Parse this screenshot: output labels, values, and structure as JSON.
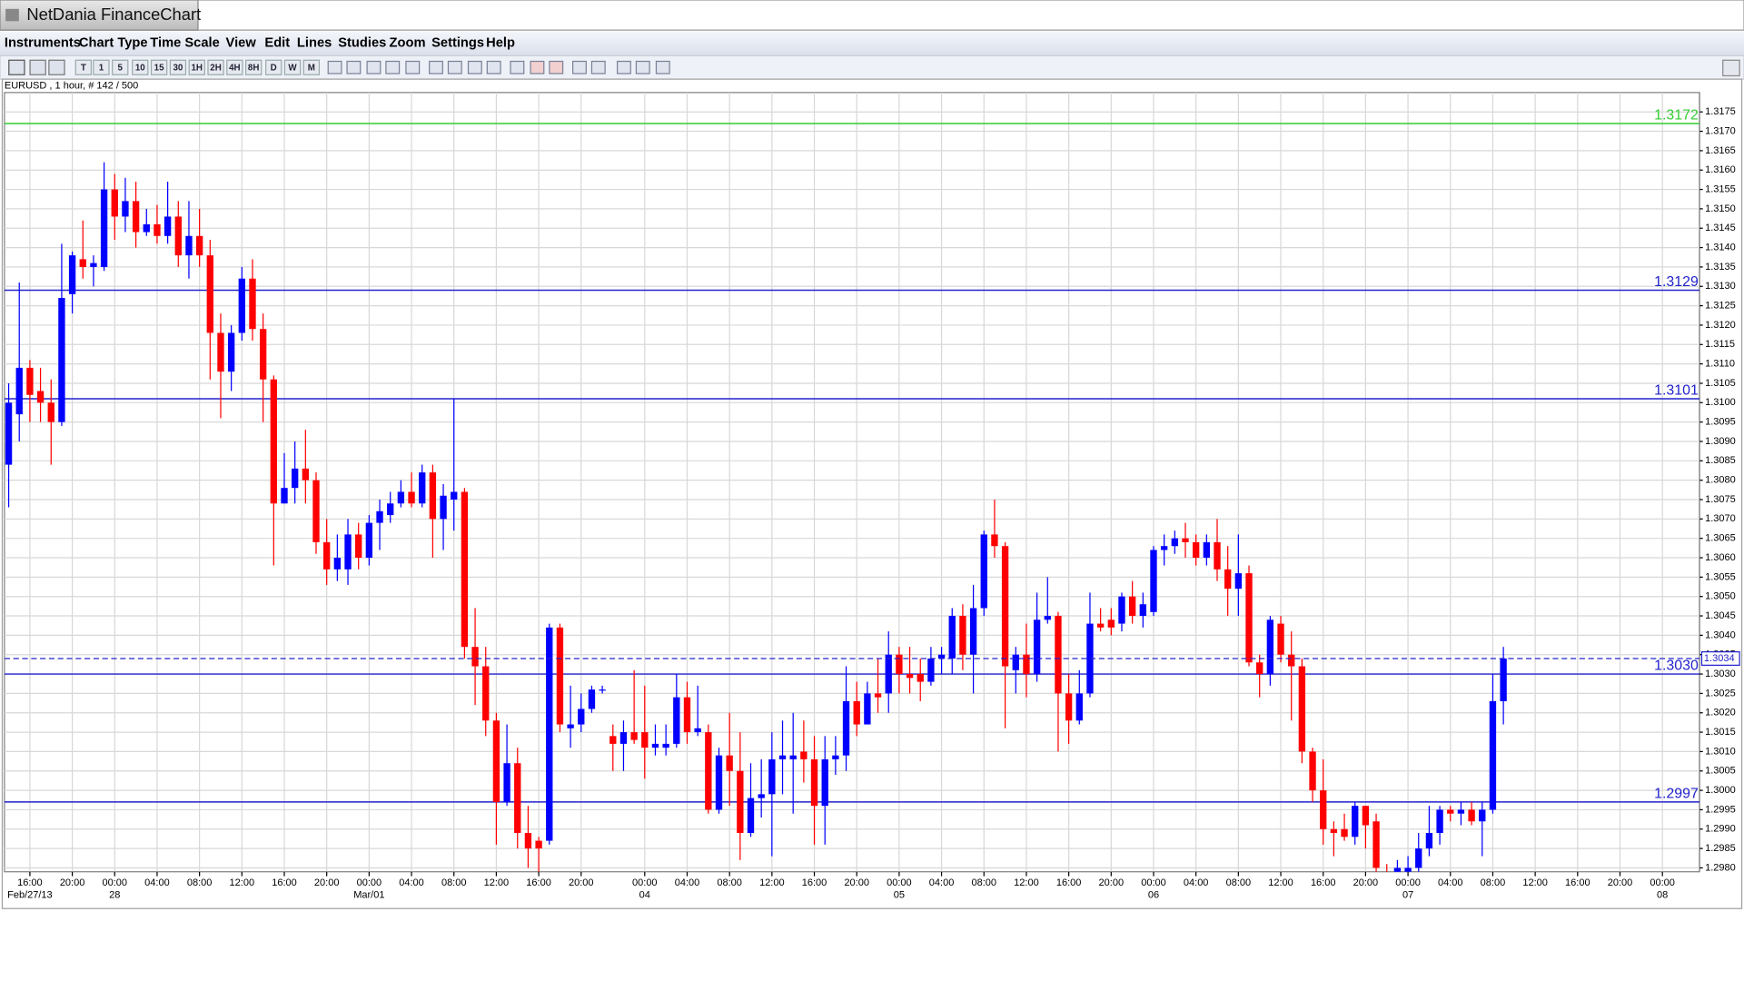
{
  "ui": {
    "window_title": "NetDania FinanceChart",
    "menu": [
      "Instruments",
      "Chart Type",
      "Time Scale",
      "View",
      "Edit",
      "Lines",
      "Studies",
      "Zoom",
      "Settings",
      "Help"
    ],
    "toolbar": [
      "T",
      "1",
      "5",
      "10",
      "15",
      "30",
      "1H",
      "2H",
      "4H",
      "8H",
      "D",
      "W",
      "M"
    ],
    "info": "EURUSD , 1 hour, # 142 / 500"
  },
  "chart_data": {
    "type": "candlestick",
    "up_color": "#0000ff",
    "down_color": "#ff0000",
    "grid": true,
    "open": [
      1.3084,
      1.3097,
      1.3109,
      1.3103,
      1.31,
      1.3095,
      1.3128,
      1.3137,
      1.3135,
      1.3135,
      1.3155,
      1.3148,
      1.3152,
      1.3144,
      1.3146,
      1.3143,
      1.3148,
      1.3138,
      1.3143,
      1.3138,
      1.3118,
      1.3108,
      1.3118,
      1.3132,
      1.3119,
      1.3106,
      1.3074,
      1.3078,
      1.3083,
      1.308,
      1.3064,
      1.3057,
      1.3057,
      1.3066,
      1.306,
      1.3069,
      1.3071,
      1.3074,
      1.3077,
      1.3074,
      1.3082,
      1.307,
      1.3075,
      1.3077,
      1.3037,
      1.3032,
      1.3018,
      1.2997,
      1.3007,
      1.2989,
      1.2987,
      1.2987,
      1.3042,
      1.3016,
      1.3017,
      1.3021,
      1.3026,
      1.3014,
      1.3012,
      1.3015,
      1.3015,
      1.3011,
      1.3011,
      1.3012,
      1.3024,
      1.3015,
      1.3015,
      1.2995,
      1.3009,
      1.3005,
      1.2989,
      1.2998,
      1.2999,
      1.3008,
      1.3008,
      1.301,
      1.3008,
      1.2996,
      1.3008,
      1.3009,
      1.3023,
      1.3017,
      1.3025,
      1.3025,
      1.3035,
      1.303,
      1.303,
      1.3028,
      1.3034,
      1.3034,
      1.3045,
      1.3035,
      1.3047,
      1.3066,
      1.3063,
      1.3031,
      1.3035,
      1.303,
      1.3044,
      1.3045,
      1.3025,
      1.3018,
      1.3025,
      1.3043,
      1.3044,
      1.3043,
      1.305,
      1.3045,
      1.3046,
      1.3062,
      1.3063,
      1.3065,
      1.3064,
      1.306,
      1.3064,
      1.3057,
      1.3052,
      1.3056,
      1.3033,
      1.303,
      1.3043,
      1.3035,
      1.3032,
      1.301,
      1.3,
      1.299,
      1.299,
      1.2988,
      1.2996,
      1.2992,
      1.2979,
      1.2977,
      1.2978,
      1.298,
      1.2985,
      1.2989,
      1.2995,
      1.2994,
      1.2995,
      1.2992,
      1.2995,
      1.3023
    ],
    "high": [
      1.3105,
      1.3131,
      1.3111,
      1.3109,
      1.3106,
      1.3141,
      1.3139,
      1.3147,
      1.3138,
      1.3162,
      1.3159,
      1.3158,
      1.3157,
      1.315,
      1.3151,
      1.3157,
      1.3152,
      1.3152,
      1.315,
      1.3142,
      1.3123,
      1.312,
      1.3135,
      1.3137,
      1.3123,
      1.3107,
      1.3087,
      1.309,
      1.3093,
      1.3082,
      1.307,
      1.3066,
      1.307,
      1.3069,
      1.3071,
      1.3075,
      1.3077,
      1.308,
      1.3082,
      1.3084,
      1.3084,
      1.3079,
      1.3101,
      1.3078,
      1.3047,
      1.3037,
      1.302,
      1.3017,
      1.3011,
      1.2996,
      1.2988,
      1.3043,
      1.3043,
      1.3027,
      1.3025,
      1.3027,
      1.3027,
      1.3017,
      1.3018,
      1.3031,
      1.3027,
      1.3017,
      1.3017,
      1.303,
      1.3028,
      1.3027,
      1.3017,
      1.3011,
      1.302,
      1.3015,
      1.3007,
      1.3008,
      1.3015,
      1.3018,
      1.302,
      1.3018,
      1.3014,
      1.3014,
      1.3014,
      1.3032,
      1.3028,
      1.3028,
      1.3034,
      1.3041,
      1.3037,
      1.3037,
      1.3034,
      1.3037,
      1.3037,
      1.3047,
      1.3048,
      1.3053,
      1.3067,
      1.3075,
      1.3064,
      1.3037,
      1.3043,
      1.3051,
      1.3055,
      1.3046,
      1.303,
      1.3031,
      1.3051,
      1.3047,
      1.3047,
      1.3051,
      1.3054,
      1.3051,
      1.3063,
      1.3066,
      1.3067,
      1.3069,
      1.3066,
      1.3066,
      1.307,
      1.3063,
      1.3066,
      1.3058,
      1.3035,
      1.3045,
      1.3045,
      1.3041,
      1.3034,
      1.3011,
      1.3008,
      1.2992,
      1.2994,
      1.2997,
      1.2996,
      1.2994,
      1.2981,
      1.2982,
      1.2983,
      1.2989,
      1.2996,
      1.2996,
      1.2996,
      1.2997,
      1.2997,
      1.2997,
      1.303,
      1.3037
    ],
    "low": [
      1.3073,
      1.309,
      1.3095,
      1.3095,
      1.3084,
      1.3094,
      1.3123,
      1.3132,
      1.313,
      1.3134,
      1.3142,
      1.3144,
      1.314,
      1.3143,
      1.3141,
      1.3141,
      1.3135,
      1.3132,
      1.3135,
      1.3106,
      1.3096,
      1.3103,
      1.3116,
      1.3116,
      1.3095,
      1.3058,
      1.3074,
      1.3074,
      1.3074,
      1.3061,
      1.3053,
      1.3054,
      1.3053,
      1.3057,
      1.3058,
      1.3062,
      1.3069,
      1.3073,
      1.3073,
      1.3073,
      1.306,
      1.3062,
      1.3067,
      1.3034,
      1.3022,
      1.3014,
      1.2986,
      1.2996,
      1.2985,
      1.298,
      1.2979,
      1.2986,
      1.3015,
      1.3011,
      1.3015,
      1.302,
      1.3025,
      1.3005,
      1.3005,
      1.3012,
      1.3003,
      1.3009,
      1.3009,
      1.3011,
      1.3012,
      1.3014,
      1.2994,
      1.2994,
      1.2996,
      1.2982,
      1.2988,
      1.2993,
      1.2983,
      1.2999,
      1.2994,
      1.3002,
      1.2986,
      1.2986,
      1.3004,
      1.3005,
      1.3014,
      1.3017,
      1.302,
      1.302,
      1.3025,
      1.3025,
      1.3023,
      1.3027,
      1.303,
      1.303,
      1.3031,
      1.3025,
      1.3045,
      1.306,
      1.3016,
      1.3025,
      1.3024,
      1.3028,
      1.3043,
      1.301,
      1.3012,
      1.3017,
      1.3024,
      1.3041,
      1.304,
      1.3041,
      1.3043,
      1.3042,
      1.3045,
      1.3058,
      1.3061,
      1.306,
      1.3058,
      1.3058,
      1.3054,
      1.3045,
      1.3045,
      1.3032,
      1.3024,
      1.3027,
      1.3033,
      1.3018,
      1.3007,
      1.2997,
      1.2986,
      1.2983,
      1.2987,
      1.2986,
      1.2985,
      1.2978,
      1.2973,
      1.2975,
      1.2976,
      1.2979,
      1.2983,
      1.2986,
      1.2992,
      1.2991,
      1.2991,
      1.2983,
      1.2994,
      1.3017
    ],
    "close": [
      1.31,
      1.3109,
      1.3102,
      1.31,
      1.3095,
      1.3127,
      1.3138,
      1.3135,
      1.3136,
      1.3155,
      1.3148,
      1.3152,
      1.3144,
      1.3146,
      1.3143,
      1.3148,
      1.3138,
      1.3143,
      1.3138,
      1.3118,
      1.3108,
      1.3118,
      1.3132,
      1.3119,
      1.3106,
      1.3074,
      1.3078,
      1.3083,
      1.308,
      1.3064,
      1.3057,
      1.306,
      1.3066,
      1.306,
      1.3069,
      1.3072,
      1.3074,
      1.3077,
      1.3074,
      1.3082,
      1.307,
      1.3076,
      1.3077,
      1.3037,
      1.3032,
      1.3018,
      1.2997,
      1.3007,
      1.2989,
      1.2985,
      1.2985,
      1.3042,
      1.3017,
      1.3017,
      1.3021,
      1.3026,
      1.3026,
      1.3012,
      1.3015,
      1.3013,
      1.3011,
      1.3012,
      1.3012,
      1.3024,
      1.3015,
      1.3016,
      1.2995,
      1.3009,
      1.3005,
      1.2989,
      1.2998,
      1.2999,
      1.3008,
      1.3009,
      1.3009,
      1.3008,
      1.2996,
      1.3008,
      1.3009,
      1.3023,
      1.3017,
      1.3025,
      1.3024,
      1.3035,
      1.303,
      1.3029,
      1.3028,
      1.3034,
      1.3035,
      1.3045,
      1.3035,
      1.3047,
      1.3066,
      1.3063,
      1.3032,
      1.3035,
      1.303,
      1.3044,
      1.3045,
      1.3025,
      1.3018,
      1.3025,
      1.3043,
      1.3042,
      1.3042,
      1.305,
      1.3045,
      1.3048,
      1.3062,
      1.3063,
      1.3065,
      1.3064,
      1.306,
      1.3064,
      1.3057,
      1.3052,
      1.3056,
      1.3033,
      1.303,
      1.3044,
      1.3035,
      1.3032,
      1.301,
      1.3,
      1.299,
      1.2989,
      1.2988,
      1.2996,
      1.2991,
      1.298,
      1.2975,
      1.298,
      1.298,
      1.2985,
      1.2989,
      1.2995,
      1.2994,
      1.2995,
      1.2992,
      1.2995,
      1.3023,
      1.3034
    ],
    "xlim": [
      -0.4,
      159.5
    ],
    "xticks": [
      {
        "value": 2,
        "label": "16:00"
      },
      {
        "value": 6,
        "label": "20:00"
      },
      {
        "value": 10,
        "label": "00:00"
      },
      {
        "value": 14,
        "label": "04:00"
      },
      {
        "value": 18,
        "label": "08:00"
      },
      {
        "value": 22,
        "label": "12:00"
      },
      {
        "value": 26,
        "label": "16:00"
      },
      {
        "value": 30,
        "label": "20:00"
      },
      {
        "value": 34,
        "label": "00:00"
      },
      {
        "value": 38,
        "label": "04:00"
      },
      {
        "value": 42,
        "label": "08:00"
      },
      {
        "value": 46,
        "label": "12:00"
      },
      {
        "value": 50,
        "label": "16:00"
      },
      {
        "value": 54,
        "label": "20:00"
      },
      {
        "value": 60,
        "label": "00:00"
      },
      {
        "value": 64,
        "label": "04:00"
      },
      {
        "value": 68,
        "label": "08:00"
      },
      {
        "value": 72,
        "label": "12:00"
      },
      {
        "value": 76,
        "label": "16:00"
      },
      {
        "value": 80,
        "label": "20:00"
      },
      {
        "value": 84,
        "label": "00:00"
      },
      {
        "value": 88,
        "label": "04:00"
      },
      {
        "value": 92,
        "label": "08:00"
      },
      {
        "value": 96,
        "label": "12:00"
      },
      {
        "value": 100,
        "label": "16:00"
      },
      {
        "value": 104,
        "label": "20:00"
      },
      {
        "value": 108,
        "label": "00:00"
      },
      {
        "value": 112,
        "label": "04:00"
      },
      {
        "value": 116,
        "label": "08:00"
      },
      {
        "value": 120,
        "label": "12:00"
      },
      {
        "value": 124,
        "label": "16:00"
      },
      {
        "value": 128,
        "label": "20:00"
      },
      {
        "value": 132,
        "label": "00:00"
      },
      {
        "value": 136,
        "label": "04:00"
      },
      {
        "value": 140,
        "label": "08:00"
      },
      {
        "value": 144,
        "label": "12:00"
      },
      {
        "value": 148,
        "label": "16:00"
      },
      {
        "value": 152,
        "label": "20:00"
      },
      {
        "value": 156,
        "label": "00:00"
      }
    ],
    "date_ticks": [
      {
        "value": 2,
        "label": "Feb/27/13"
      },
      {
        "value": 10,
        "label": "28"
      },
      {
        "value": 34,
        "label": "Mar/01"
      },
      {
        "value": 60,
        "label": "04"
      },
      {
        "value": 84,
        "label": "05"
      },
      {
        "value": 108,
        "label": "06"
      },
      {
        "value": 132,
        "label": "07"
      },
      {
        "value": 156,
        "label": "08"
      }
    ],
    "ylim": [
      1.2979,
      1.318
    ],
    "yticks": [
      {
        "value": 1.298,
        "label": "1.2980"
      },
      1.2985,
      {
        "value": 1.299,
        "label": "1.2990"
      },
      1.2995,
      {
        "value": 1.3,
        "label": "1.3000"
      },
      1.3005,
      {
        "value": 1.301,
        "label": "1.3010"
      },
      1.3015,
      {
        "value": 1.302,
        "label": "1.3020"
      },
      1.3025,
      {
        "value": 1.303,
        "label": "1.3030"
      },
      1.3035,
      {
        "value": 1.304,
        "label": "1.3040"
      },
      1.3045,
      {
        "value": 1.305,
        "label": "1.3050"
      },
      1.3055,
      {
        "value": 1.306,
        "label": "1.3060"
      },
      1.3065,
      {
        "value": 1.307,
        "label": "1.3070"
      },
      1.3075,
      {
        "value": 1.308,
        "label": "1.3080"
      },
      1.3085,
      {
        "value": 1.309,
        "label": "1.3090"
      },
      1.3095,
      {
        "value": 1.31,
        "label": "1.3100"
      },
      1.3105,
      {
        "value": 1.311,
        "label": "1.3110"
      },
      1.3115,
      {
        "value": 1.312,
        "label": "1.3120"
      },
      1.3125,
      {
        "value": 1.313,
        "label": "1.3130"
      },
      1.3135,
      {
        "value": 1.314,
        "label": "1.3140"
      },
      1.3145,
      {
        "value": 1.315,
        "label": "1.3150"
      },
      1.3155,
      {
        "value": 1.316,
        "label": "1.3160"
      },
      1.3165,
      {
        "value": 1.317,
        "label": "1.3170"
      },
      1.3175
    ],
    "lines": [
      {
        "value": 1.3172,
        "color": "#33cc33"
      },
      {
        "value": 1.3129,
        "color": "#2222cc"
      },
      {
        "value": 1.3101,
        "color": "#2222cc"
      },
      {
        "value": 1.303,
        "label": "1.3030",
        "color": "#2222cc"
      },
      {
        "value": 1.2997,
        "color": "#2222cc"
      }
    ],
    "last_price": 1.3034
  }
}
